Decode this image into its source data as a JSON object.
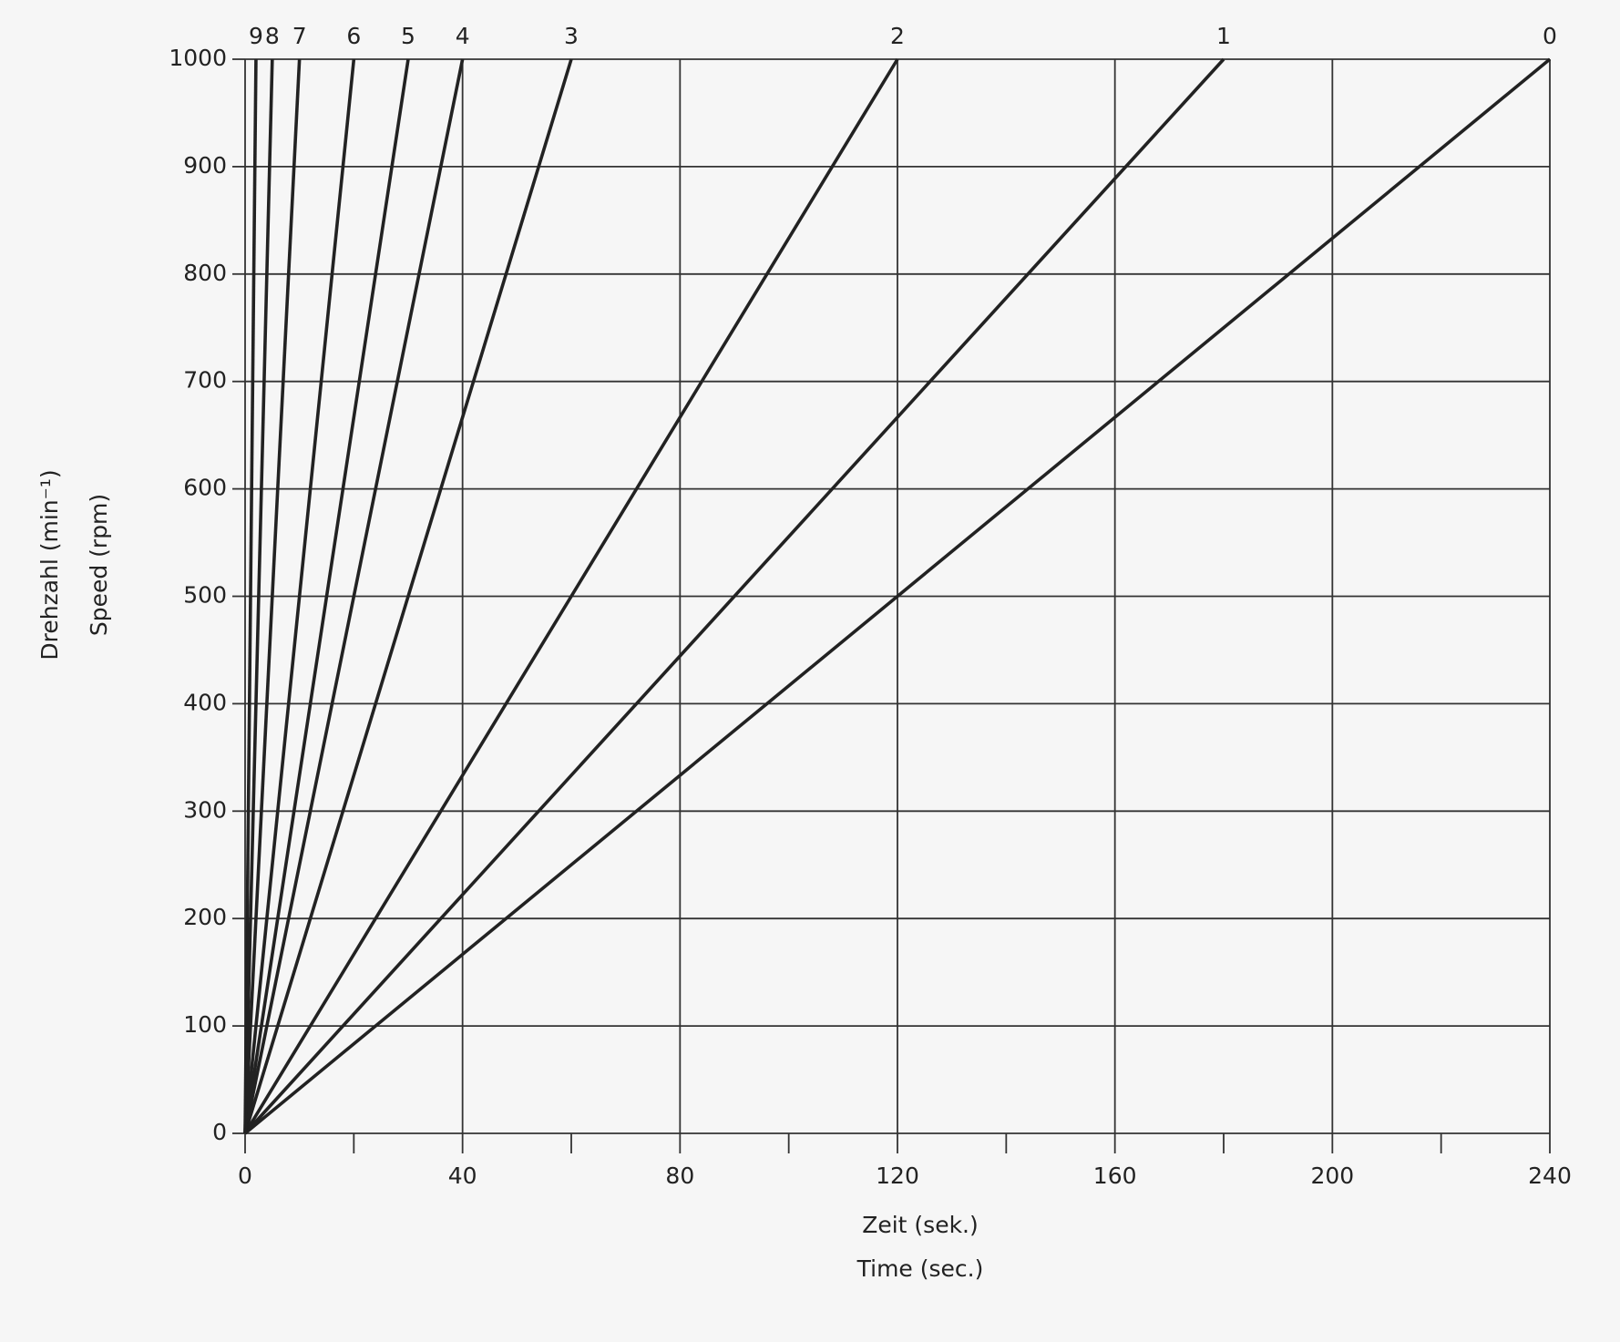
{
  "chart_data": {
    "type": "line",
    "x_label": [
      "Zeit (sek.)",
      "Time (sec.)"
    ],
    "y_label": [
      "Drehzahl (min⁻¹)",
      "Speed (rpm)"
    ],
    "xlim": [
      0,
      240
    ],
    "ylim": [
      0,
      1000
    ],
    "xticks": [
      0,
      40,
      80,
      120,
      160,
      200,
      240
    ],
    "xminorticks": [
      20,
      60,
      100,
      140,
      180,
      220
    ],
    "yticks": [
      0,
      100,
      200,
      300,
      400,
      500,
      600,
      700,
      800,
      900,
      1000
    ],
    "grid": true,
    "color": "#222222",
    "series": [
      {
        "name": "0",
        "x": [
          0,
          240
        ],
        "values": [
          0,
          1000
        ]
      },
      {
        "name": "1",
        "x": [
          0,
          180
        ],
        "values": [
          0,
          1000
        ]
      },
      {
        "name": "2",
        "x": [
          0,
          120
        ],
        "values": [
          0,
          1000
        ]
      },
      {
        "name": "3",
        "x": [
          0,
          60
        ],
        "values": [
          0,
          1000
        ]
      },
      {
        "name": "4",
        "x": [
          0,
          40
        ],
        "values": [
          0,
          1000
        ]
      },
      {
        "name": "5",
        "x": [
          0,
          30
        ],
        "values": [
          0,
          1000
        ]
      },
      {
        "name": "6",
        "x": [
          0,
          20
        ],
        "values": [
          0,
          1000
        ]
      },
      {
        "name": "7",
        "x": [
          0,
          10
        ],
        "values": [
          0,
          1000
        ]
      },
      {
        "name": "8",
        "x": [
          0,
          5
        ],
        "values": [
          0,
          1000
        ]
      },
      {
        "name": "9",
        "x": [
          0,
          2
        ],
        "values": [
          0,
          1000
        ]
      }
    ]
  }
}
